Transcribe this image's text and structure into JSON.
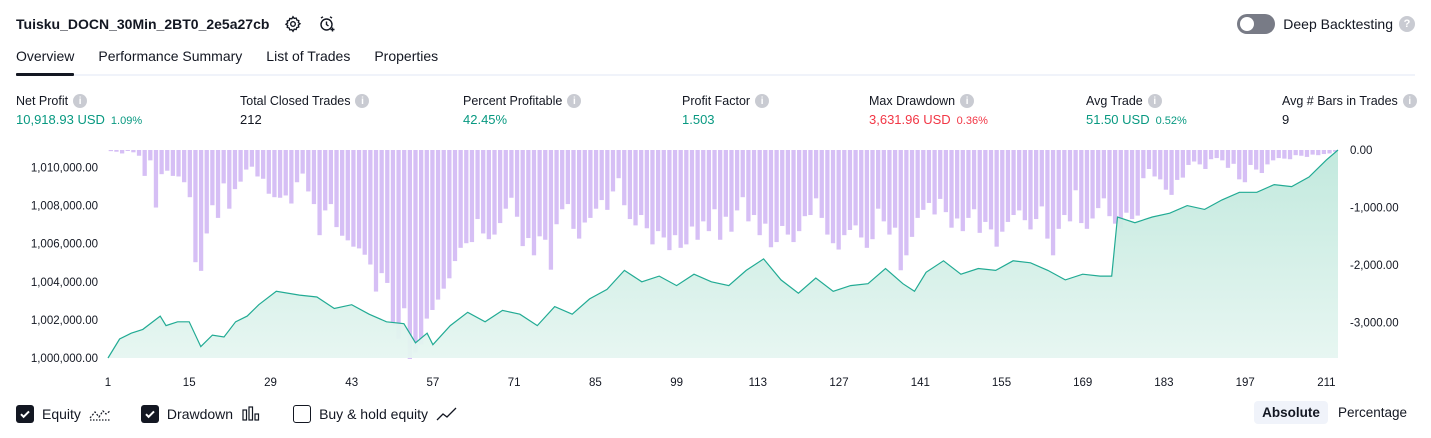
{
  "header": {
    "title": "Tuisku_DOCN_30Min_2BT0_2e5a27cb",
    "deep_backtesting_label": "Deep Backtesting",
    "help_glyph": "?"
  },
  "tabs": [
    {
      "label": "Overview",
      "active": true
    },
    {
      "label": "Performance Summary",
      "active": false
    },
    {
      "label": "List of Trades",
      "active": false
    },
    {
      "label": "Properties",
      "active": false
    }
  ],
  "metrics": [
    {
      "label": "Net Profit",
      "value": "10,918.93 USD",
      "sub": "1.09%",
      "tone": "green"
    },
    {
      "label": "Total Closed Trades",
      "value": "212",
      "sub": "",
      "tone": "plain"
    },
    {
      "label": "Percent Profitable",
      "value": "42.45%",
      "sub": "",
      "tone": "green"
    },
    {
      "label": "Profit Factor",
      "value": "1.503",
      "sub": "",
      "tone": "green"
    },
    {
      "label": "Max Drawdown",
      "value": "3,631.96 USD",
      "sub": "0.36%",
      "tone": "red"
    },
    {
      "label": "Avg Trade",
      "value": "51.50 USD",
      "sub": "0.52%",
      "tone": "green"
    },
    {
      "label": "Avg # Bars in Trades",
      "value": "9",
      "sub": "",
      "tone": "plain"
    }
  ],
  "info_glyph": "i",
  "colors": {
    "equity_line": "#22ab94",
    "equity_fill": "#d8f1ea",
    "drawdown_bar": "#d6bff5",
    "positive": "#089981",
    "negative": "#f23645"
  },
  "chart_data": {
    "type": "area",
    "left_axis": {
      "ticks": [
        "1,010,000.00",
        "1,008,000.00",
        "1,006,000.00",
        "1,004,000.00",
        "1,002,000.00",
        "1,000,000.00"
      ],
      "tick_values": [
        1010000,
        1008000,
        1006000,
        1004000,
        1002000,
        1000000
      ],
      "range": [
        1000000,
        1010918.93
      ]
    },
    "right_axis": {
      "ticks": [
        "0.00",
        "-1,000.00",
        "-2,000.00",
        "-3,000.00"
      ],
      "tick_values": [
        0,
        -1000,
        -2000,
        -3000
      ],
      "range": [
        -3631.96,
        0
      ]
    },
    "x_axis": {
      "ticks": [
        "1",
        "15",
        "29",
        "43",
        "57",
        "71",
        "85",
        "99",
        "113",
        "127",
        "141",
        "155",
        "169",
        "183",
        "197",
        "211"
      ],
      "tick_values": [
        1,
        15,
        29,
        43,
        57,
        71,
        85,
        99,
        113,
        127,
        141,
        155,
        169,
        183,
        197,
        211
      ],
      "range": [
        1,
        213
      ]
    },
    "equity": {
      "name": "Equity",
      "x": [
        1,
        3,
        5,
        7,
        10,
        11,
        13,
        15,
        17,
        19,
        21,
        23,
        25,
        27,
        30,
        34,
        37,
        40,
        43,
        46,
        49,
        52,
        54,
        56,
        57,
        60,
        63,
        66,
        69,
        72,
        75,
        78,
        81,
        84,
        87,
        90,
        93,
        96,
        99,
        102,
        105,
        108,
        111,
        114,
        117,
        120,
        123,
        126,
        129,
        132,
        135,
        138,
        140,
        142,
        145,
        148,
        151,
        154,
        157,
        160,
        163,
        166,
        169,
        172,
        174,
        175,
        178,
        181,
        184,
        187,
        190,
        193,
        196,
        199,
        202,
        205,
        208,
        211,
        213
      ],
      "y": [
        1000000,
        1001000,
        1001300,
        1001500,
        1002200,
        1001700,
        1001900,
        1001900,
        1000600,
        1001200,
        1001100,
        1001900,
        1002200,
        1002800,
        1003500,
        1003300,
        1003200,
        1002600,
        1002800,
        1002300,
        1001900,
        1001800,
        1000800,
        1001300,
        1000700,
        1001700,
        1002400,
        1001900,
        1002500,
        1002300,
        1001700,
        1002700,
        1002300,
        1003100,
        1003600,
        1004600,
        1004000,
        1004300,
        1003800,
        1004400,
        1004000,
        1003800,
        1004600,
        1005200,
        1004100,
        1003400,
        1004200,
        1003500,
        1003800,
        1003900,
        1004700,
        1003900,
        1003500,
        1004500,
        1005100,
        1004400,
        1004700,
        1004600,
        1005100,
        1005000,
        1004600,
        1004100,
        1004400,
        1004300,
        1004300,
        1007400,
        1007100,
        1007400,
        1007600,
        1008000,
        1007800,
        1008300,
        1008700,
        1008700,
        1009100,
        1009000,
        1009500,
        1010400,
        1010918.93
      ]
    },
    "drawdown": {
      "name": "Drawdown",
      "values": [
        -20,
        -30,
        -60,
        -15,
        -40,
        -100,
        -450,
        -180,
        -1000,
        -420,
        -360,
        -450,
        -460,
        -560,
        -820,
        -1950,
        -2100,
        -1450,
        -960,
        -1180,
        -580,
        -1020,
        -680,
        -550,
        -340,
        -290,
        -460,
        -500,
        -760,
        -820,
        -830,
        -790,
        -930,
        -560,
        -410,
        -720,
        -940,
        -1480,
        -1050,
        -940,
        -1340,
        -1490,
        -1570,
        -1680,
        -1710,
        -1820,
        -1990,
        -2460,
        -2140,
        -2310,
        -3050,
        -3280,
        -2750,
        -3631.96,
        -3520,
        -3380,
        -2930,
        -2780,
        -2600,
        -2410,
        -2230,
        -1930,
        -1700,
        -1620,
        -1600,
        -1200,
        -1450,
        -1550,
        -1470,
        -1270,
        -1020,
        -830,
        -1160,
        -1670,
        -1530,
        -1830,
        -1500,
        -1560,
        -2080,
        -1290,
        -1030,
        -940,
        -1370,
        -1540,
        -1260,
        -1180,
        -1020,
        -870,
        -1040,
        -720,
        -490,
        -960,
        -1200,
        -1310,
        -1130,
        -1360,
        -1640,
        -1410,
        -1520,
        -1740,
        -1480,
        -1700,
        -1640,
        -1330,
        -1560,
        -1240,
        -1410,
        -1030,
        -1560,
        -1160,
        -1420,
        -1050,
        -820,
        -1240,
        -1130,
        -1480,
        -1280,
        -1690,
        -1600,
        -1320,
        -1470,
        -1600,
        -1410,
        -1150,
        -1130,
        -840,
        -1180,
        -1470,
        -1620,
        -1730,
        -1480,
        -1390,
        -1310,
        -1520,
        -1700,
        -1550,
        -1020,
        -1240,
        -1470,
        -1350,
        -2090,
        -1830,
        -1510,
        -1180,
        -1040,
        -920,
        -1120,
        -850,
        -1080,
        -1350,
        -1190,
        -1410,
        -1180,
        -1030,
        -1440,
        -1250,
        -1380,
        -1680,
        -1420,
        -1250,
        -1130,
        -1050,
        -1220,
        -1380,
        -1200,
        -980,
        -1540,
        -1830,
        -1370,
        -1130,
        -1240,
        -700,
        -1270,
        -1370,
        -1190,
        -1010,
        -840,
        -1150,
        -1280,
        -1350,
        -1090,
        -1200,
        -1140,
        -490,
        -330,
        -460,
        -510,
        -690,
        -780,
        -520,
        -480,
        -260,
        -200,
        -250,
        -330,
        -160,
        -140,
        -180,
        -310,
        -240,
        -510,
        -560,
        -260,
        -340,
        -400,
        -250,
        -180,
        -140,
        -150,
        -160,
        -90,
        -100,
        -120,
        -80,
        -90,
        -70,
        -60,
        -30
      ]
    },
    "buy_hold": {
      "name": "Buy & hold equity",
      "shown": false
    }
  },
  "legend": [
    {
      "label": "Equity",
      "checked": true,
      "icon": "equity-line-icon"
    },
    {
      "label": "Drawdown",
      "checked": true,
      "icon": "drawdown-bars-icon"
    },
    {
      "label": "Buy & hold equity",
      "checked": false,
      "icon": "buy-hold-line-icon"
    }
  ],
  "mode": {
    "absolute_label": "Absolute",
    "percentage_label": "Percentage",
    "selected": "Absolute"
  }
}
